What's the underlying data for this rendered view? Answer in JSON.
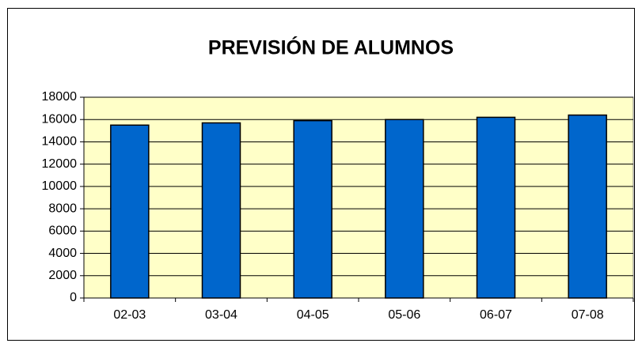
{
  "chart_data": {
    "type": "bar",
    "title": "PREVISIÓN DE ALUMNOS",
    "categories": [
      "02-03",
      "03-04",
      "04-05",
      "05-06",
      "06-07",
      "07-08"
    ],
    "values": [
      15500,
      15700,
      15900,
      16000,
      16200,
      16400
    ],
    "color": "#0066cc",
    "ylim": [
      0,
      18000
    ],
    "yticks": [
      0,
      2000,
      4000,
      6000,
      8000,
      10000,
      12000,
      14000,
      16000,
      18000
    ],
    "grid": true
  }
}
